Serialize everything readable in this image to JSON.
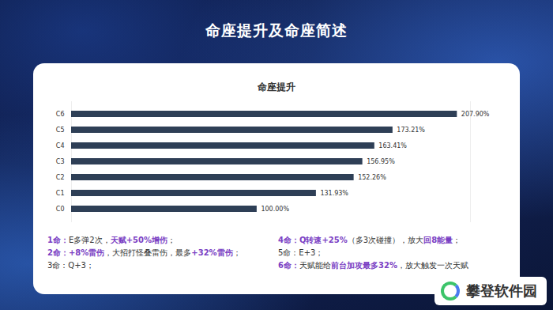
{
  "title": "命座提升及命座简述",
  "chart_data": {
    "type": "bar",
    "title": "命座提升",
    "orientation": "horizontal",
    "categories": [
      "C6",
      "C5",
      "C4",
      "C3",
      "C2",
      "C1",
      "C0"
    ],
    "values": [
      207.9,
      173.21,
      163.41,
      156.95,
      152.26,
      131.93,
      100.0
    ],
    "value_labels": [
      "207.90%",
      "173.21%",
      "163.41%",
      "156.95%",
      "152.26%",
      "131.93%",
      "100.00%"
    ],
    "color": "#2e3f56",
    "xlim": [
      0,
      215
    ],
    "tick_labels": "y",
    "data_labels": true
  },
  "notes": {
    "left": [
      [
        {
          "text": "1命：",
          "em": true
        },
        {
          "text": "E多弹2次，"
        },
        {
          "text": "天赋+50%增伤",
          "em": true
        },
        {
          "text": "；"
        }
      ],
      [
        {
          "text": "2命：",
          "em": true
        },
        {
          "text": "+8%雷伤",
          "em": true
        },
        {
          "text": "，大招打怪叠雷伤，最多"
        },
        {
          "text": "+32%雷伤",
          "em": true
        },
        {
          "text": "；"
        }
      ],
      [
        {
          "text": "3命：Q+3；"
        }
      ]
    ],
    "right": [
      [
        {
          "text": "4命：",
          "em": true
        },
        {
          "text": "Q转速+25%",
          "em": true
        },
        {
          "text": "（多3次碰撞），放大"
        },
        {
          "text": "回8能量",
          "em": true
        },
        {
          "text": "；"
        }
      ],
      [
        {
          "text": "5命：E+3；"
        }
      ],
      [
        {
          "text": "6命：",
          "em": true
        },
        {
          "text": "天赋能给"
        },
        {
          "text": "前台加攻最多32%",
          "em": true
        },
        {
          "text": "，放大触发一次天赋"
        }
      ]
    ]
  },
  "watermark": "攀登软件园"
}
